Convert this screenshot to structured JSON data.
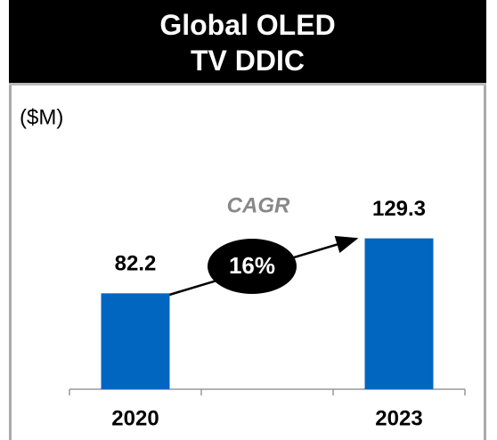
{
  "chart_data": {
    "type": "bar",
    "title": "Global OLED\nTV DDIC",
    "unit_label": "($M)",
    "categories": [
      "2020",
      null,
      "2023"
    ],
    "values": [
      82.2,
      null,
      129.3
    ],
    "color": "#0066c0",
    "ylim": [
      0,
      150
    ],
    "annotations": {
      "cagr_label": "CAGR",
      "cagr_value": "16%"
    }
  }
}
